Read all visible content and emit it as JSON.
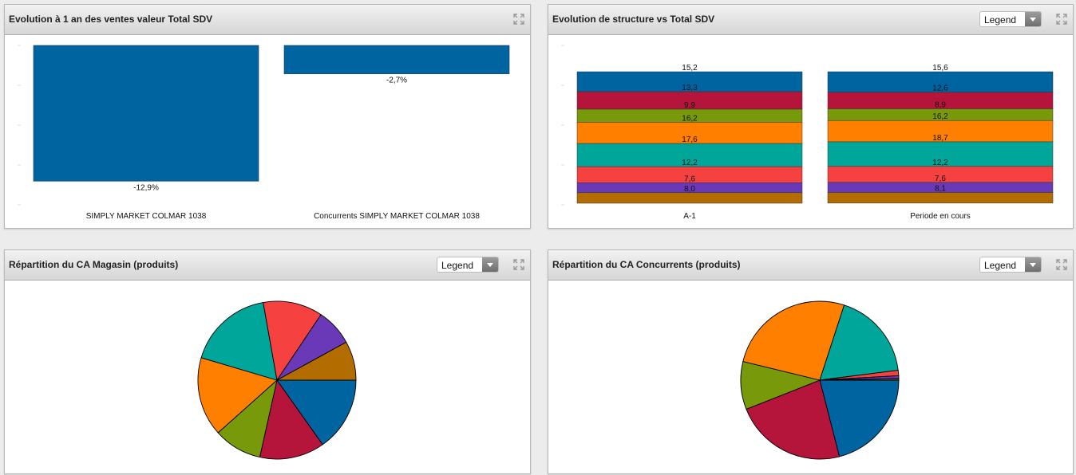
{
  "panels": {
    "sales_evolution": {
      "title": "Evolution à 1 an des ventes valeur Total SDV"
    },
    "structure": {
      "title": "Evolution de structure vs Total SDV",
      "legend_label": "Legend"
    },
    "pie_store": {
      "title": "Répartition du CA Magasin (produits)",
      "legend_label": "Legend"
    },
    "pie_competitors": {
      "title": "Répartition du CA Concurrents (produits)",
      "legend_label": "Legend"
    }
  },
  "colors": [
    "#0064a0",
    "#b5153a",
    "#77990a",
    "#ff7f00",
    "#00a69a",
    "#f64141",
    "#6a39b7",
    "#b26c00"
  ],
  "chart_data": [
    {
      "type": "bar",
      "categories": [
        "SIMPLY MARKET COLMAR 1038",
        "Concurrents SIMPLY MARKET COLMAR 1038"
      ],
      "values": [
        -12.9,
        -2.7
      ],
      "data_labels": [
        "-12,9%",
        "-2,7%"
      ],
      "ylim": [
        -15,
        0
      ],
      "grid": false
    },
    {
      "type": "bar",
      "stacked": true,
      "categories": [
        "A-1",
        "Periode en cours"
      ],
      "series": [
        {
          "values": [
            15.2,
            15.6
          ],
          "labels": [
            "15,2",
            "15,6"
          ],
          "color": "#0064a0"
        },
        {
          "values": [
            13.3,
            12.6
          ],
          "labels": [
            "13,3",
            "12,6"
          ],
          "color": "#b5153a"
        },
        {
          "values": [
            9.9,
            8.9
          ],
          "labels": [
            "9,9",
            "8,9"
          ],
          "color": "#77990a"
        },
        {
          "values": [
            16.2,
            16.2
          ],
          "labels": [
            "16,2",
            "16,2"
          ],
          "color": "#ff7f00"
        },
        {
          "values": [
            17.6,
            18.7
          ],
          "labels": [
            "17,6",
            "18,7"
          ],
          "color": "#00a69a"
        },
        {
          "values": [
            12.2,
            12.2
          ],
          "labels": [
            "12,2",
            "12,2"
          ],
          "color": "#f64141"
        },
        {
          "values": [
            7.6,
            7.6
          ],
          "labels": [
            "7,6",
            "7,6"
          ],
          "color": "#6a39b7"
        },
        {
          "values": [
            8.0,
            8.1
          ],
          "labels": [
            "8,0",
            "8,1"
          ],
          "color": "#b26c00"
        }
      ],
      "ylim": [
        0,
        100
      ]
    },
    {
      "type": "pie",
      "values": [
        15.2,
        13.3,
        9.9,
        16.2,
        17.6,
        12.2,
        7.6,
        8.0
      ],
      "colors": [
        "#0064a0",
        "#b5153a",
        "#77990a",
        "#ff7f00",
        "#00a69a",
        "#f64141",
        "#6a39b7",
        "#b26c00"
      ]
    },
    {
      "type": "pie",
      "values": [
        21.0,
        23.0,
        9.8,
        26.2,
        18.0,
        1.1,
        0.6,
        0.3
      ],
      "colors": [
        "#0064a0",
        "#b5153a",
        "#77990a",
        "#ff7f00",
        "#00a69a",
        "#f64141",
        "#6a39b7",
        "#b26c00"
      ]
    }
  ]
}
